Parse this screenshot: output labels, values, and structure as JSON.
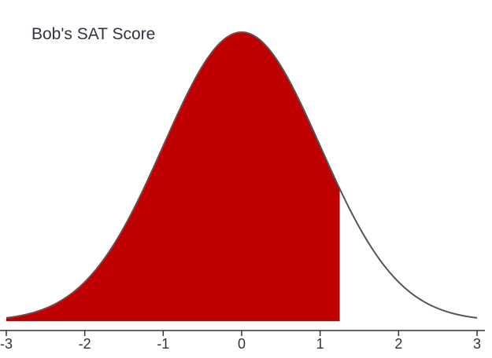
{
  "chart_data": {
    "type": "area",
    "title": "Bob's SAT Score",
    "xlabel": "",
    "ylabel": "",
    "distribution": "standard-normal",
    "xlim": [
      -3,
      3
    ],
    "x_ticks": [
      -3,
      -2,
      -1,
      0,
      1,
      2,
      3
    ],
    "x_tick_labels": [
      "-3",
      "-2",
      "-1",
      "0",
      "1",
      "2",
      "3"
    ],
    "shaded_from": -3,
    "shaded_to": 1.25,
    "grid": false,
    "legend": "none",
    "colors": {
      "shade": "#c00000",
      "curve": "#000000",
      "curve_tail": "#555555",
      "axis": "#333333"
    }
  }
}
